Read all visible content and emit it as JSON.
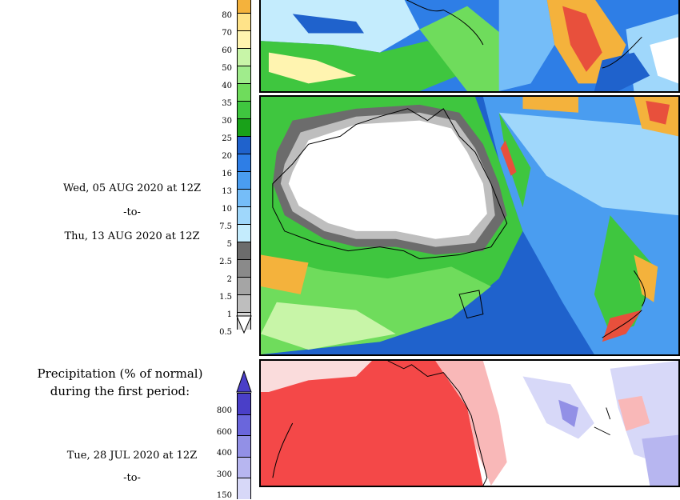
{
  "period_second": {
    "start": "Wed, 05 AUG 2020 at 12Z",
    "sep": "-to-",
    "end": "Thu, 13 AUG 2020 at 12Z"
  },
  "percent_section": {
    "title_line1": "Precipitation (% of normal)",
    "title_line2": "during the first period:",
    "start": "Tue, 28 JUL 2020 at 12Z",
    "sep": "-to-"
  },
  "precip_scale": {
    "ticks": [
      "80",
      "70",
      "60",
      "50",
      "40",
      "35",
      "30",
      "25",
      "20",
      "16",
      "13",
      "10",
      "7.5",
      "5",
      "2.5",
      "2",
      "1.5",
      "1",
      "0.5"
    ],
    "colors": [
      "#f4b23c",
      "#ffe389",
      "#fff4b0",
      "#c8f5a8",
      "#a0ec8c",
      "#6fdc5c",
      "#3fc63f",
      "#19a119",
      "#1f62cc",
      "#2e7ee6",
      "#4a9df0",
      "#75bdf8",
      "#9fd7fb",
      "#c4ecfd",
      "#6c6c6c",
      "#8a8a8a",
      "#a5a5a5",
      "#bebebe",
      "#d6d6d6"
    ]
  },
  "percent_scale": {
    "ticks": [
      "800",
      "600",
      "400",
      "300",
      "150"
    ],
    "colors": [
      "#4a3fc8",
      "#6a66dc",
      "#9290e6",
      "#b7b6f0",
      "#d7d8f8"
    ]
  }
}
